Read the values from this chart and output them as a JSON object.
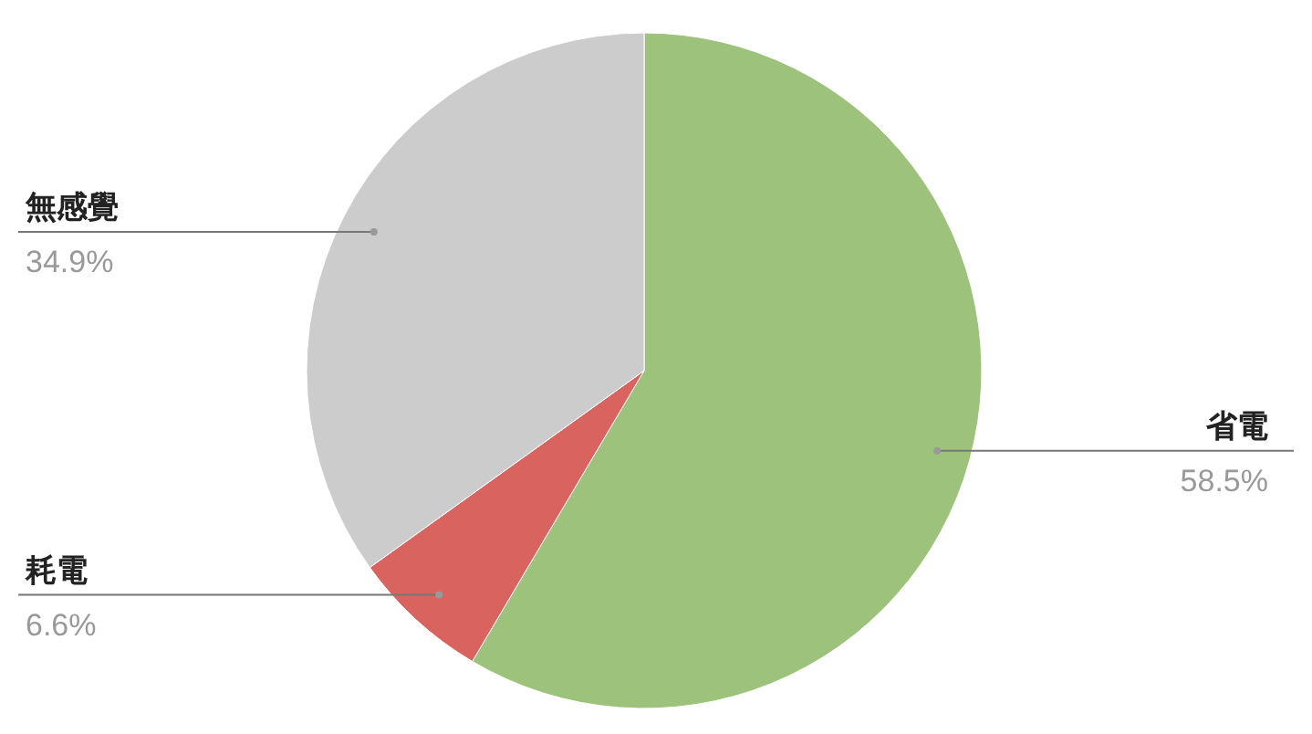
{
  "chart_data": {
    "type": "pie",
    "categories": [
      "省電",
      "耗電",
      "無感覺"
    ],
    "values": [
      58.5,
      6.6,
      34.9
    ],
    "colors": [
      "#9dc27b",
      "#d9645f",
      "#cccccc"
    ],
    "value_labels": [
      "58.5%",
      "6.6%",
      "34.9%"
    ]
  }
}
